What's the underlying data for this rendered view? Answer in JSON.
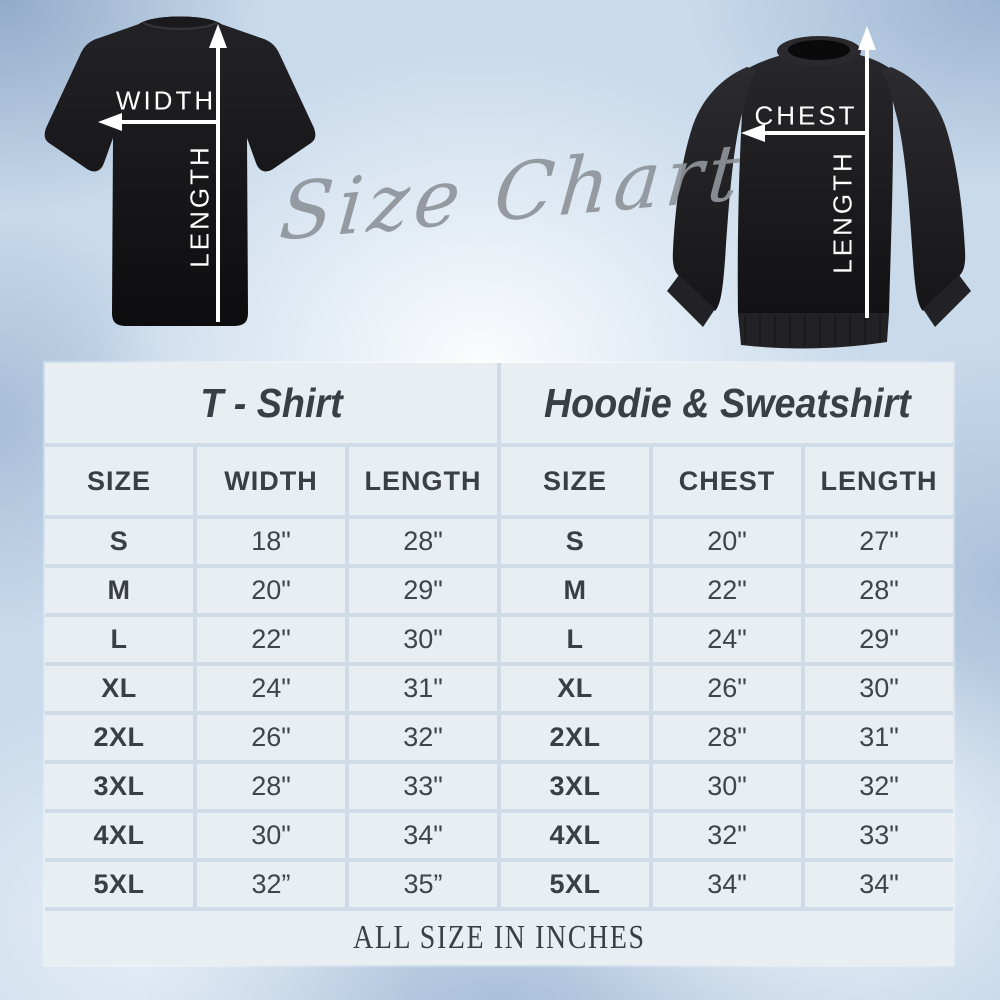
{
  "title_script": {
    "text": "Size Chart"
  },
  "hero": {
    "tshirt": {
      "width_label": "WIDTH",
      "length_label": "LENGTH"
    },
    "sweatshirt": {
      "chest_label": "CHEST",
      "length_label": "LENGTH"
    }
  },
  "tables": [
    {
      "title": "T - Shirt",
      "columns": [
        "SIZE",
        "WIDTH",
        "LENGTH"
      ],
      "rows": [
        [
          "S",
          "18\"",
          "28\""
        ],
        [
          "M",
          "20\"",
          "29\""
        ],
        [
          "L",
          "22\"",
          "30\""
        ],
        [
          "XL",
          "24\"",
          "31\""
        ],
        [
          "2XL",
          "26\"",
          "32\""
        ],
        [
          "3XL",
          "28\"",
          "33\""
        ],
        [
          "4XL",
          "30\"",
          "34\""
        ],
        [
          "5XL",
          "32”",
          "35”"
        ]
      ]
    },
    {
      "title": "Hoodie & Sweatshirt",
      "columns": [
        "SIZE",
        "CHEST",
        "LENGTH"
      ],
      "rows": [
        [
          "S",
          "20\"",
          "27\""
        ],
        [
          "M",
          "22\"",
          "28\""
        ],
        [
          "L",
          "24\"",
          "29\""
        ],
        [
          "XL",
          "26\"",
          "30\""
        ],
        [
          "2XL",
          "28\"",
          "31\""
        ],
        [
          "3XL",
          "30\"",
          "32\""
        ],
        [
          "4XL",
          "32\"",
          "33\""
        ],
        [
          "5XL",
          "34\"",
          "34\""
        ]
      ]
    }
  ],
  "footer": {
    "text": "ALL SIZE IN INCHES"
  },
  "colors": {
    "cell_bg": "#e9eef3",
    "grid_line": "#cfdce8",
    "text_dark": "#3a3f45",
    "script_gray": "#8f949b",
    "garment_black": "#151517",
    "arrow_white": "#ffffff",
    "background_blue": "#c9daeb"
  }
}
